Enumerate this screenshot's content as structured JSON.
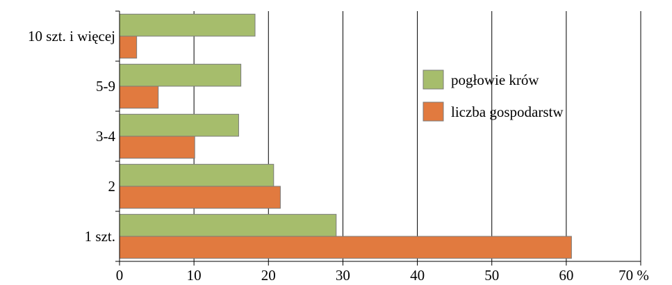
{
  "chart_data": {
    "type": "bar",
    "orientation": "horizontal",
    "categories": [
      "1 szt.",
      "2",
      "3-4",
      "5-9",
      "10 szt. i więcej"
    ],
    "series": [
      {
        "name": "pogłowie krów",
        "color": "#a6bd6c",
        "values": [
          29.1,
          20.7,
          16.0,
          16.3,
          18.2
        ]
      },
      {
        "name": "liczba gospodarstw",
        "color": "#e17a3f",
        "values": [
          60.7,
          21.6,
          10.1,
          5.2,
          2.3
        ]
      }
    ],
    "x_ticks": [
      "0",
      "10",
      "20",
      "30",
      "40",
      "50",
      "60",
      "70 %"
    ],
    "xlim": [
      0,
      70
    ],
    "grid": "vertical",
    "legend_position": "right"
  }
}
